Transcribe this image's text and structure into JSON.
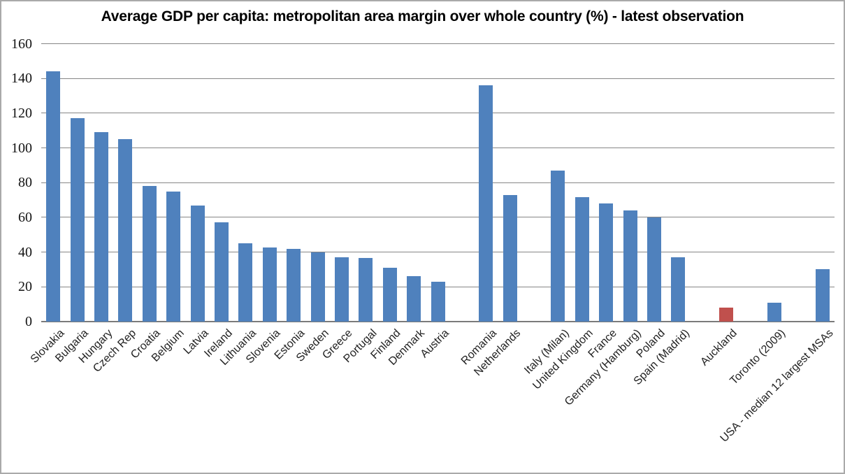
{
  "chart_data": {
    "type": "bar",
    "title": "Average GDP per capita: metropolitan area margin over whole country (%) -  latest observation",
    "xlabel": "",
    "ylabel": "",
    "ylim": [
      0,
      160
    ],
    "yticks": [
      0,
      20,
      40,
      60,
      80,
      100,
      120,
      140,
      160
    ],
    "grid": true,
    "legend_position": "none",
    "bar_color": "#4F81BD",
    "highlight_color": "#C0504D",
    "gridline_color": "#868686",
    "axis_line_color": "#7b7b7b",
    "background_color": "#FFFFFF",
    "bars": [
      {
        "label": "Slovakia",
        "value": 144
      },
      {
        "label": "Bulgaria",
        "value": 117
      },
      {
        "label": "Hungary",
        "value": 109
      },
      {
        "label": "Czech Rep",
        "value": 105
      },
      {
        "label": "Croatia",
        "value": 78
      },
      {
        "label": "Belgium",
        "value": 75
      },
      {
        "label": "Latvia",
        "value": 67
      },
      {
        "label": "Ireland",
        "value": 57
      },
      {
        "label": "Lithuania",
        "value": 45
      },
      {
        "label": "Slovenia",
        "value": 42.5
      },
      {
        "label": "Estonia",
        "value": 42
      },
      {
        "label": "Sweden",
        "value": 40
      },
      {
        "label": "Greece",
        "value": 37
      },
      {
        "label": "Portugal",
        "value": 36.5
      },
      {
        "label": "Finland",
        "value": 31
      },
      {
        "label": "Denmark",
        "value": 26
      },
      {
        "label": "Austria",
        "value": 23
      },
      {
        "label": "",
        "value": null
      },
      {
        "label": "Romania",
        "value": 136
      },
      {
        "label": "Netherlands",
        "value": 73
      },
      {
        "label": "",
        "value": null
      },
      {
        "label": "Italy (Milan)",
        "value": 87
      },
      {
        "label": "United Kingdom",
        "value": 71.5
      },
      {
        "label": "France",
        "value": 68
      },
      {
        "label": "Germany (Hamburg)",
        "value": 64
      },
      {
        "label": "Poland",
        "value": 60
      },
      {
        "label": "Spain (Madrid)",
        "value": 37
      },
      {
        "label": "",
        "value": null
      },
      {
        "label": "Auckland",
        "value": 8,
        "color": "#C0504D"
      },
      {
        "label": "",
        "value": null
      },
      {
        "label": "Toronto (2009)",
        "value": 11
      },
      {
        "label": "",
        "value": null
      },
      {
        "label": "USA -  median 12 largest MSAs",
        "value": 30
      }
    ]
  }
}
